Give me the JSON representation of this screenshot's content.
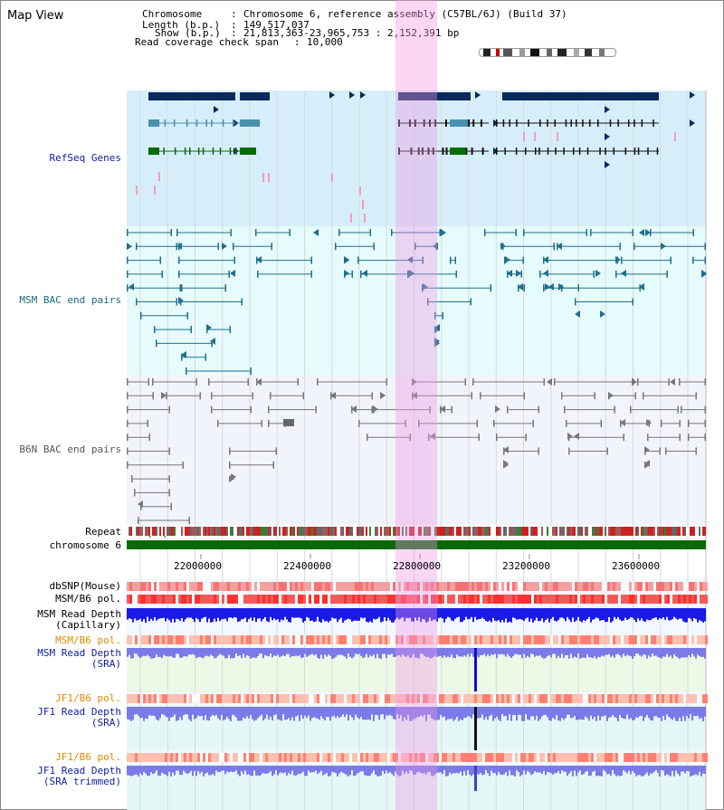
{
  "title": "Map View",
  "info": {
    "chromosome_key": "Chromosome",
    "chromosome_val": "Chromosome 6, reference assembly (C57BL/6J) (Build 37)",
    "length_key": "Length (b.p.)",
    "length_val": "149,517,037",
    "show_key": "Show (b.p.)",
    "show_val": "21,813,363-23,965,753 : 2,152,391 bp",
    "span_key": "Read coverage check span",
    "span_val": "10,000"
  },
  "tracks": {
    "refseq": "RefSeq Genes",
    "msm_bac": "MSM BAC end pairs",
    "b6n_bac": "B6N BAC end pairs",
    "repeat": "Repeat",
    "chromosome": "chromosome 6",
    "dbsnp": "dbSNP(Mouse)",
    "msm_b6_pol": "MSM/B6 pol.",
    "msm_depth_cap_1": "MSM Read Depth",
    "msm_depth_cap_2": "(Capillary)",
    "msm_b6_pol2": "MSM/B6 pol.",
    "msm_depth_sra_1": "MSM Read Depth",
    "msm_depth_sra_2": "(SRA)",
    "jf1_b6_pol": "JF1/B6 pol.",
    "jf1_depth_sra_1": "JF1 Read Depth",
    "jf1_depth_sra_2": "(SRA)",
    "jf1_b6_pol2": "JF1/B6 pol.",
    "jf1_depth_trim_1": "JF1 Read Depth",
    "jf1_depth_trim_2": "(SRA trimmed)"
  },
  "axis": {
    "ticks": [
      "22000000",
      "22400000",
      "22800000",
      "23200000",
      "23600000"
    ]
  },
  "colors": {
    "refseq_bg": "#d6eef9",
    "msm_bg": "#e6fbfb",
    "b6n_bg": "#f1f4fb",
    "highlight": "#f5b6ee",
    "gene_navy": "#0a2a5e",
    "gene_teal": "#4a90b0",
    "gene_green": "#0a6a0a",
    "msm_line": "#1f6f8f",
    "b6n_line": "#777777",
    "orange_label": "#e08a00",
    "blue_label": "#1020a0",
    "depth_blue": "#2a2ae0",
    "depth_violet": "#7a7ae8"
  }
}
